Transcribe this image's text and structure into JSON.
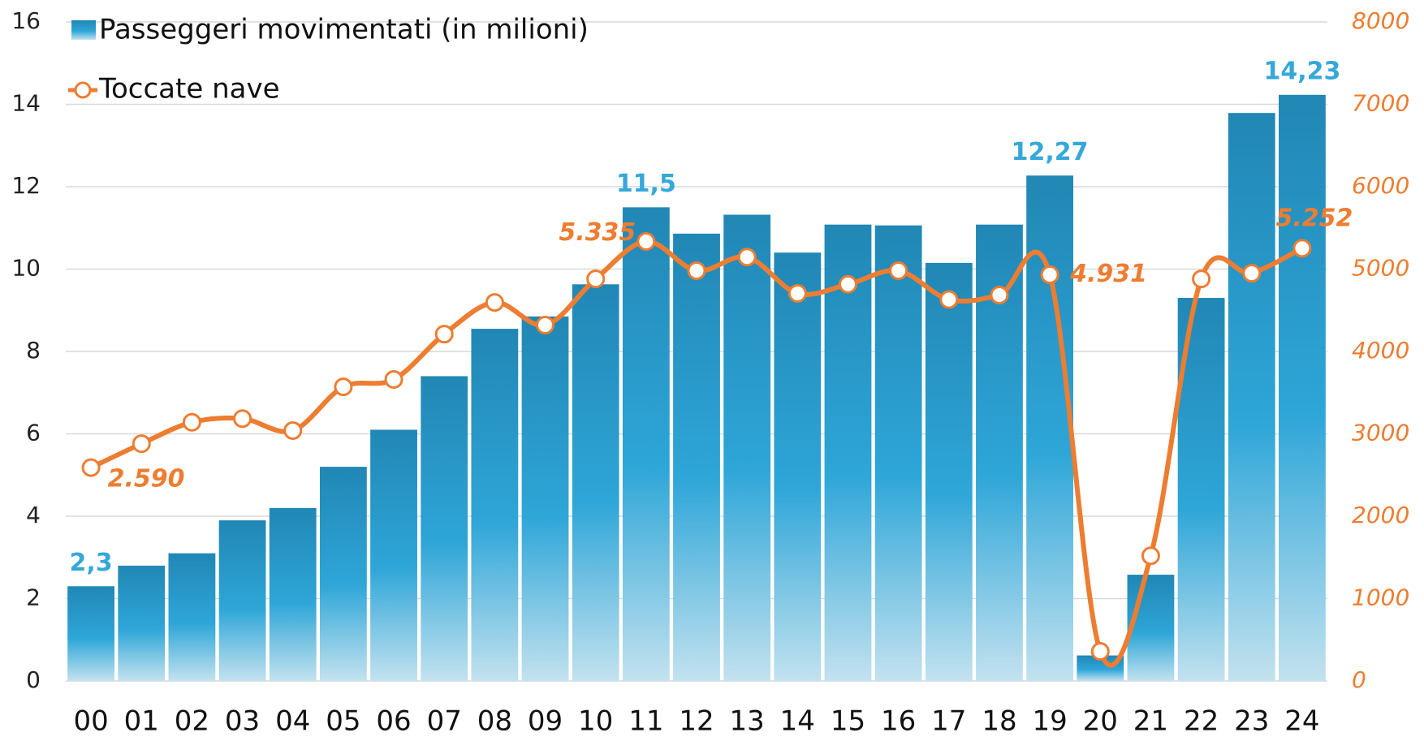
{
  "chart_data": {
    "type": "bar_line",
    "categories": [
      "00",
      "01",
      "02",
      "03",
      "04",
      "05",
      "06",
      "07",
      "08",
      "09",
      "10",
      "11",
      "12",
      "13",
      "14",
      "15",
      "16",
      "17",
      "18",
      "19",
      "20",
      "21",
      "22",
      "23",
      "24"
    ],
    "series": [
      {
        "name": "Passeggeri movimentati (in milioni)",
        "type": "bar",
        "color": "#2ea6d8",
        "values": [
          2.3,
          2.8,
          3.1,
          3.9,
          4.2,
          5.2,
          6.1,
          7.4,
          8.55,
          8.85,
          9.63,
          11.5,
          10.86,
          11.32,
          10.4,
          11.08,
          11.06,
          10.15,
          11.08,
          12.27,
          0.62,
          2.58,
          9.3,
          13.79,
          14.23
        ],
        "value_labels": [
          "2,3",
          null,
          null,
          null,
          null,
          null,
          null,
          null,
          null,
          null,
          null,
          "11,5",
          null,
          null,
          null,
          null,
          null,
          null,
          null,
          "12,27",
          null,
          null,
          null,
          null,
          "14,23"
        ]
      },
      {
        "name": "Toccate nave",
        "type": "line",
        "axis": "y2",
        "color": "#ed7d31",
        "values": [
          2590,
          2880,
          3140,
          3185,
          3040,
          3570,
          3660,
          4210,
          4595,
          4320,
          4880,
          5335,
          4980,
          5145,
          4705,
          4815,
          4980,
          4630,
          4685,
          4931,
          360,
          1520,
          4880,
          4950,
          5252
        ],
        "value_labels": [
          "2.590",
          null,
          null,
          null,
          null,
          null,
          null,
          null,
          null,
          null,
          null,
          "5.335",
          null,
          null,
          null,
          null,
          null,
          null,
          null,
          "4.931",
          null,
          null,
          null,
          null,
          "5.252"
        ]
      }
    ],
    "ylim": [
      0,
      16
    ],
    "yticks": [
      0,
      2,
      4,
      6,
      8,
      10,
      12,
      14,
      16
    ],
    "y2lim": [
      0,
      8000
    ],
    "y2ticks": [
      0,
      1000,
      2000,
      3000,
      4000,
      5000,
      6000,
      7000,
      8000
    ],
    "grid": true,
    "legend": "top-left"
  }
}
